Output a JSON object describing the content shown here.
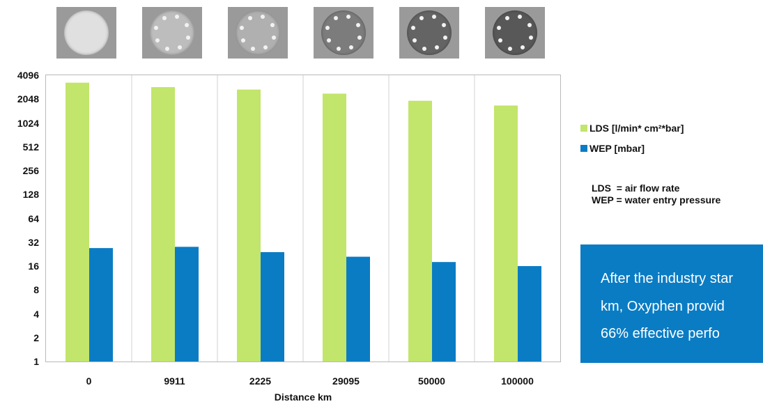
{
  "chart_data": {
    "type": "bar",
    "categories": [
      "0",
      "9911",
      "2225",
      "29095",
      "50000",
      "100000"
    ],
    "series": [
      {
        "name": "LDS [l/min* cm²*bar]",
        "values": [
          3300,
          2900,
          2700,
          2400,
          1950,
          1700
        ],
        "color": "#c2e56b"
      },
      {
        "name": "WEP [mbar]",
        "values": [
          27,
          28,
          24,
          21,
          18,
          16
        ],
        "color": "#0a7cc4"
      }
    ],
    "xlabel": "Distance km",
    "ylabel": "",
    "yscale": "log2",
    "ylim": [
      1,
      4096
    ],
    "yticks": [
      "4096",
      "2048",
      "1024",
      "512",
      "256",
      "128",
      "64",
      "32",
      "16",
      "8",
      "4",
      "2",
      "1"
    ],
    "grid": "vertical",
    "legend_position": "right"
  },
  "thumbnails": [
    {
      "tone": "#e0e0e0",
      "dots": 0
    },
    {
      "tone": "#bdbdbd",
      "dots": 8
    },
    {
      "tone": "#b0b0b0",
      "dots": 8
    },
    {
      "tone": "#7c7c7c",
      "dots": 8
    },
    {
      "tone": "#646464",
      "dots": 8
    },
    {
      "tone": "#585858",
      "dots": 8
    }
  ],
  "notes": {
    "line1": "LDS  = air flow rate",
    "line2": "WEP = water entry pressure"
  },
  "callout": {
    "line1": "After the industry star",
    "line2": "km, Oxyphen provid",
    "line3": "66% effective perfo"
  }
}
